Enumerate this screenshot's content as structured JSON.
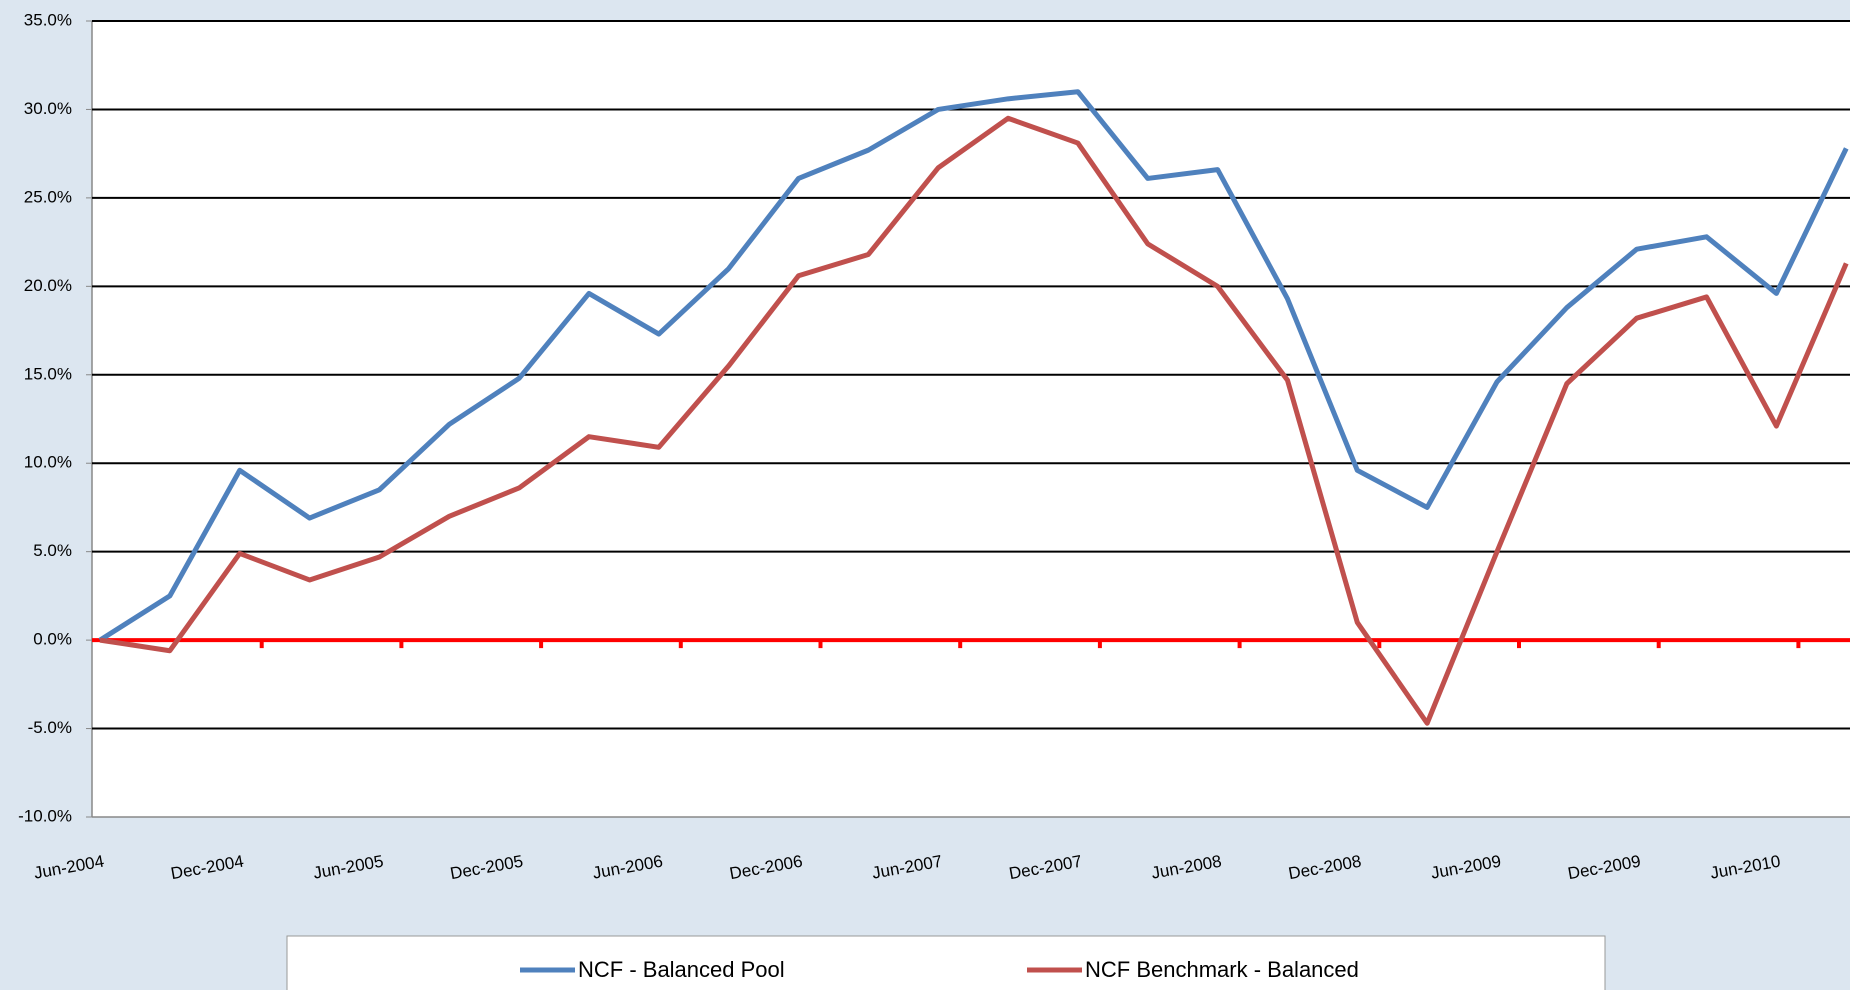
{
  "chart_data": {
    "type": "line",
    "categories": [
      "Jun-2004",
      null,
      "Dec-2004",
      null,
      "Jun-2005",
      null,
      "Dec-2005",
      null,
      "Jun-2006",
      null,
      "Dec-2006",
      null,
      "Jun-2007",
      null,
      "Dec-2007",
      null,
      "Jun-2008",
      null,
      "Dec-2008",
      null,
      "Jun-2009",
      null,
      "Dec-2009",
      null,
      "Jun-2010",
      null
    ],
    "series": [
      {
        "name": "NCF - Balanced Pool",
        "color": "#4f81bd",
        "values": [
          0,
          2.5,
          9.6,
          6.9,
          8.5,
          12.2,
          14.8,
          19.6,
          17.3,
          21.0,
          26.1,
          27.7,
          30.0,
          30.6,
          31.0,
          26.1,
          26.6,
          19.3,
          9.6,
          7.5,
          14.6,
          18.8,
          22.1,
          22.8,
          19.6,
          27.8
        ]
      },
      {
        "name": "NCF Benchmark - Balanced",
        "color": "#c0504d",
        "values": [
          0,
          -0.6,
          4.9,
          3.4,
          4.7,
          7.0,
          8.6,
          11.5,
          10.9,
          15.5,
          20.6,
          21.8,
          26.7,
          29.5,
          28.1,
          22.4,
          20.0,
          14.7,
          1.0,
          -4.7,
          5.0,
          14.5,
          18.2,
          19.4,
          12.1,
          21.3
        ]
      }
    ],
    "ylim": [
      -10,
      35
    ],
    "yticks": [
      {
        "value": -10,
        "label": "-10.0%"
      },
      {
        "value": -5,
        "label": "-5.0%"
      },
      {
        "value": 0,
        "label": "0.0%"
      },
      {
        "value": 5,
        "label": "5.0%"
      },
      {
        "value": 10,
        "label": "10.0%"
      },
      {
        "value": 15,
        "label": "15.0%"
      },
      {
        "value": 20,
        "label": "20.0%"
      },
      {
        "value": 25,
        "label": "25.0%"
      },
      {
        "value": 30,
        "label": "30.0%"
      },
      {
        "value": 35,
        "label": "35.0%"
      }
    ],
    "grid": true,
    "zero_line_color": "#ff0000",
    "legend": "bottom"
  }
}
